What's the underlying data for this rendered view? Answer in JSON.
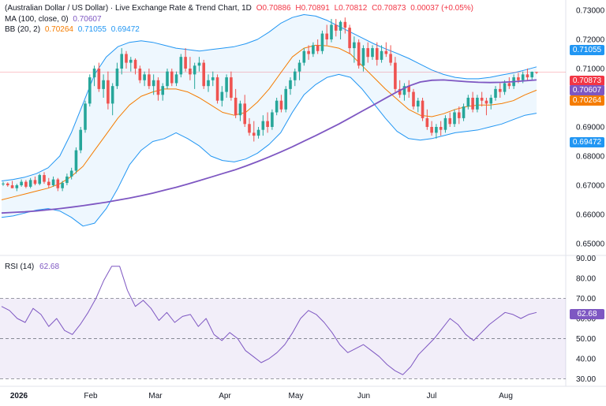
{
  "header": {
    "title": "(Australian Dollar / US Dollar) · Live Exchange Rate & Trend Chart, 1D",
    "ohlc": {
      "o": "O0.70886",
      "h": "H0.70891",
      "l": "L0.70812",
      "c": "C0.70873",
      "chg": "0.00037 (+0.05%)"
    },
    "ma": {
      "label": "MA (100, close, 0)",
      "value": "0.70607"
    },
    "bb": {
      "label": "BB (20, 2)",
      "mid": "0.70264",
      "upper": "0.71055",
      "lower": "0.69472"
    }
  },
  "rsi": {
    "label": "RSI (14)",
    "value": "62.68"
  },
  "colors": {
    "up": "#26a69a",
    "down": "#ef5350",
    "ma": "#7e57c2",
    "bb_mid": "#f57c00",
    "bb_band": "#2196f3",
    "rsi_line": "#7e57c2",
    "price_line": "#f23645"
  },
  "price_tags": [
    {
      "value": "0.71055",
      "color": "#2196f3"
    },
    {
      "value": "0.70873",
      "color": "#f23645"
    },
    {
      "value": "0.70607",
      "color": "#7e57c2"
    },
    {
      "value": "0.70264",
      "color": "#f57c00"
    },
    {
      "value": "0.69472",
      "color": "#2196f3"
    }
  ],
  "rsi_tag": {
    "value": "62.68",
    "color": "#7e57c2"
  },
  "chart_data": {
    "type": "line",
    "price_axis": {
      "ticks": [
        "0.73000",
        "0.72000",
        "0.71000",
        "0.70000",
        "0.69000",
        "0.68000",
        "0.67000",
        "0.66000",
        "0.65000"
      ],
      "ylim": [
        0.6465,
        0.7335
      ]
    },
    "rsi_axis": {
      "ticks": [
        "90.00",
        "80.00",
        "70.00",
        "60.00",
        "50.00",
        "40.00",
        "30.00"
      ],
      "ylim": [
        27,
        91
      ]
    },
    "x_ticks": [
      "2026",
      "Feb",
      "Mar",
      "Apr",
      "May",
      "Jun",
      "Jul",
      "Aug"
    ],
    "series": [
      {
        "name": "MA (100, close, 0)",
        "values": [
          0.6605,
          0.6607,
          0.6609,
          0.6612,
          0.6616,
          0.662,
          0.6625,
          0.663,
          0.6636,
          0.6642,
          0.6649,
          0.6656,
          0.6664,
          0.6673,
          0.6683,
          0.6693,
          0.6704,
          0.6716,
          0.6728,
          0.674,
          0.6752,
          0.6766,
          0.6781,
          0.6797,
          0.6814,
          0.6832,
          0.6851,
          0.687,
          0.689,
          0.691,
          0.6932,
          0.6954,
          0.6976,
          0.6998,
          0.702,
          0.704,
          0.7054,
          0.706,
          0.7061,
          0.7058,
          0.7055,
          0.7053,
          0.7052,
          0.7053,
          0.7055,
          0.7058,
          0.7061
        ]
      },
      {
        "name": "BB (20, 2) upper",
        "values": [
          0.6715,
          0.672,
          0.6728,
          0.674,
          0.676,
          0.68,
          0.688,
          0.698,
          0.708,
          0.714,
          0.7175,
          0.719,
          0.7195,
          0.719,
          0.718,
          0.717,
          0.7165,
          0.716,
          0.7165,
          0.717,
          0.7175,
          0.7185,
          0.72,
          0.7225,
          0.7255,
          0.7275,
          0.7285,
          0.728,
          0.7265,
          0.7245,
          0.7225,
          0.7205,
          0.7185,
          0.7168,
          0.7152,
          0.7135,
          0.7115,
          0.7095,
          0.708,
          0.707,
          0.7065,
          0.7065,
          0.707,
          0.7078,
          0.7085,
          0.7095,
          0.7106
        ]
      },
      {
        "name": "BB (20, 2) basis",
        "values": [
          0.665,
          0.666,
          0.667,
          0.668,
          0.669,
          0.6705,
          0.673,
          0.6765,
          0.682,
          0.6875,
          0.693,
          0.6975,
          0.7005,
          0.702,
          0.703,
          0.703,
          0.702,
          0.7,
          0.6975,
          0.695,
          0.694,
          0.695,
          0.6985,
          0.703,
          0.7085,
          0.714,
          0.717,
          0.718,
          0.7178,
          0.717,
          0.715,
          0.711,
          0.707,
          0.703,
          0.6995,
          0.696,
          0.694,
          0.6935,
          0.6945,
          0.696,
          0.697,
          0.6975,
          0.6975,
          0.698,
          0.699,
          0.701,
          0.7026
        ]
      },
      {
        "name": "BB (20, 2) lower",
        "values": [
          0.659,
          0.6595,
          0.6605,
          0.6615,
          0.662,
          0.6612,
          0.659,
          0.656,
          0.657,
          0.662,
          0.669,
          0.677,
          0.682,
          0.685,
          0.686,
          0.688,
          0.686,
          0.6835,
          0.68,
          0.6785,
          0.678,
          0.679,
          0.681,
          0.684,
          0.688,
          0.695,
          0.701,
          0.7045,
          0.707,
          0.708,
          0.707,
          0.703,
          0.698,
          0.693,
          0.6885,
          0.686,
          0.6855,
          0.686,
          0.687,
          0.688,
          0.6885,
          0.689,
          0.69,
          0.691,
          0.6925,
          0.694,
          0.6947
        ]
      },
      {
        "name": "RSI (14)",
        "values": [
          66,
          64,
          60,
          58,
          65,
          62,
          56,
          60,
          54,
          52,
          57,
          63,
          70,
          79,
          86,
          86,
          74,
          66,
          69,
          65,
          59,
          63,
          58,
          61,
          62,
          56,
          60,
          52,
          49,
          53,
          50,
          44,
          41,
          38,
          40,
          43,
          47,
          53,
          60,
          64,
          62,
          58,
          53,
          47,
          43,
          45,
          47,
          44,
          41,
          37,
          34,
          32,
          36,
          42,
          46,
          50,
          55,
          60,
          57,
          52,
          49,
          53,
          57,
          60,
          63,
          62,
          60,
          62,
          63
        ]
      }
    ],
    "candles": [
      [
        0.6705,
        0.6712,
        0.6698,
        0.6706
      ],
      [
        0.6706,
        0.671,
        0.6695,
        0.67
      ],
      [
        0.67,
        0.6715,
        0.669,
        0.669
      ],
      [
        0.669,
        0.6705,
        0.668,
        0.67
      ],
      [
        0.67,
        0.672,
        0.6695,
        0.6712
      ],
      [
        0.6712,
        0.6718,
        0.669,
        0.6695
      ],
      [
        0.6695,
        0.6725,
        0.669,
        0.6718
      ],
      [
        0.6718,
        0.673,
        0.67,
        0.6705
      ],
      [
        0.6705,
        0.674,
        0.67,
        0.6735
      ],
      [
        0.6735,
        0.6745,
        0.6705,
        0.6712
      ],
      [
        0.6712,
        0.6725,
        0.669,
        0.67
      ],
      [
        0.67,
        0.673,
        0.6695,
        0.672
      ],
      [
        0.672,
        0.6725,
        0.668,
        0.669
      ],
      [
        0.669,
        0.6715,
        0.668,
        0.6708
      ],
      [
        0.6708,
        0.674,
        0.67,
        0.673
      ],
      [
        0.673,
        0.676,
        0.672,
        0.675
      ],
      [
        0.675,
        0.683,
        0.674,
        0.682
      ],
      [
        0.682,
        0.69,
        0.681,
        0.689
      ],
      [
        0.689,
        0.699,
        0.688,
        0.698
      ],
      [
        0.698,
        0.708,
        0.697,
        0.707
      ],
      [
        0.707,
        0.711,
        0.704,
        0.71
      ],
      [
        0.71,
        0.712,
        0.702,
        0.703
      ],
      [
        0.703,
        0.708,
        0.7,
        0.706
      ],
      [
        0.706,
        0.709,
        0.696,
        0.698
      ],
      [
        0.698,
        0.705,
        0.694,
        0.704
      ],
      [
        0.704,
        0.712,
        0.703,
        0.71
      ],
      [
        0.71,
        0.717,
        0.708,
        0.715
      ],
      [
        0.715,
        0.716,
        0.71,
        0.712
      ],
      [
        0.712,
        0.714,
        0.709,
        0.713
      ],
      [
        0.713,
        0.7135,
        0.708,
        0.71
      ],
      [
        0.71,
        0.711,
        0.705,
        0.706
      ],
      [
        0.706,
        0.709,
        0.704,
        0.708
      ],
      [
        0.708,
        0.71,
        0.703,
        0.704
      ],
      [
        0.704,
        0.708,
        0.701,
        0.706
      ],
      [
        0.706,
        0.707,
        0.699,
        0.701
      ],
      [
        0.701,
        0.705,
        0.699,
        0.704
      ],
      [
        0.704,
        0.71,
        0.703,
        0.709
      ],
      [
        0.709,
        0.71,
        0.704,
        0.705
      ],
      [
        0.705,
        0.709,
        0.704,
        0.708
      ],
      [
        0.708,
        0.715,
        0.707,
        0.714
      ],
      [
        0.714,
        0.717,
        0.709,
        0.71
      ],
      [
        0.71,
        0.714,
        0.706,
        0.708
      ],
      [
        0.708,
        0.712,
        0.703,
        0.711
      ],
      [
        0.711,
        0.714,
        0.709,
        0.712
      ],
      [
        0.712,
        0.713,
        0.703,
        0.704
      ],
      [
        0.704,
        0.708,
        0.702,
        0.706
      ],
      [
        0.706,
        0.709,
        0.704,
        0.707
      ],
      [
        0.707,
        0.708,
        0.698,
        0.699
      ],
      [
        0.699,
        0.704,
        0.697,
        0.702
      ],
      [
        0.702,
        0.708,
        0.7,
        0.707
      ],
      [
        0.707,
        0.709,
        0.699,
        0.7
      ],
      [
        0.7,
        0.703,
        0.693,
        0.694
      ],
      [
        0.694,
        0.699,
        0.692,
        0.698
      ],
      [
        0.698,
        0.701,
        0.69,
        0.691
      ],
      [
        0.691,
        0.693,
        0.687,
        0.688
      ],
      [
        0.688,
        0.692,
        0.685,
        0.687
      ],
      [
        0.687,
        0.69,
        0.686,
        0.689
      ],
      [
        0.689,
        0.694,
        0.687,
        0.692
      ],
      [
        0.692,
        0.695,
        0.688,
        0.69
      ],
      [
        0.69,
        0.696,
        0.689,
        0.695
      ],
      [
        0.695,
        0.7,
        0.694,
        0.699
      ],
      [
        0.699,
        0.701,
        0.695,
        0.696
      ],
      [
        0.696,
        0.704,
        0.695,
        0.703
      ],
      [
        0.703,
        0.707,
        0.701,
        0.706
      ],
      [
        0.706,
        0.71,
        0.704,
        0.709
      ],
      [
        0.709,
        0.713,
        0.706,
        0.712
      ],
      [
        0.712,
        0.717,
        0.711,
        0.716
      ],
      [
        0.716,
        0.718,
        0.713,
        0.715
      ],
      [
        0.715,
        0.719,
        0.714,
        0.718
      ],
      [
        0.718,
        0.72,
        0.715,
        0.716
      ],
      [
        0.716,
        0.723,
        0.715,
        0.722
      ],
      [
        0.722,
        0.725,
        0.718,
        0.72
      ],
      [
        0.72,
        0.727,
        0.719,
        0.725
      ],
      [
        0.725,
        0.727,
        0.721,
        0.723
      ],
      [
        0.723,
        0.7265,
        0.72,
        0.726
      ],
      [
        0.726,
        0.7275,
        0.722,
        0.724
      ],
      [
        0.724,
        0.725,
        0.715,
        0.717
      ],
      [
        0.717,
        0.721,
        0.712,
        0.719
      ],
      [
        0.719,
        0.72,
        0.71,
        0.711
      ],
      [
        0.711,
        0.718,
        0.709,
        0.717
      ],
      [
        0.717,
        0.719,
        0.712,
        0.714
      ],
      [
        0.714,
        0.718,
        0.713,
        0.717
      ],
      [
        0.717,
        0.719,
        0.711,
        0.713
      ],
      [
        0.713,
        0.718,
        0.712,
        0.716
      ],
      [
        0.716,
        0.719,
        0.714,
        0.715
      ],
      [
        0.715,
        0.718,
        0.711,
        0.712
      ],
      [
        0.712,
        0.714,
        0.702,
        0.703
      ],
      [
        0.703,
        0.706,
        0.7,
        0.701
      ],
      [
        0.701,
        0.705,
        0.699,
        0.704
      ],
      [
        0.704,
        0.706,
        0.7,
        0.702
      ],
      [
        0.702,
        0.703,
        0.696,
        0.697
      ],
      [
        0.697,
        0.7,
        0.695,
        0.699
      ],
      [
        0.699,
        0.7,
        0.692,
        0.693
      ],
      [
        0.693,
        0.696,
        0.689,
        0.69
      ],
      [
        0.69,
        0.692,
        0.687,
        0.688
      ],
      [
        0.688,
        0.691,
        0.686,
        0.69
      ],
      [
        0.69,
        0.692,
        0.687,
        0.689
      ],
      [
        0.689,
        0.694,
        0.688,
        0.693
      ],
      [
        0.693,
        0.695,
        0.69,
        0.691
      ],
      [
        0.691,
        0.696,
        0.69,
        0.695
      ],
      [
        0.695,
        0.697,
        0.691,
        0.693
      ],
      [
        0.693,
        0.698,
        0.692,
        0.697
      ],
      [
        0.697,
        0.701,
        0.696,
        0.7
      ],
      [
        0.7,
        0.702,
        0.695,
        0.696
      ],
      [
        0.696,
        0.701,
        0.695,
        0.7
      ],
      [
        0.7,
        0.702,
        0.697,
        0.699
      ],
      [
        0.699,
        0.7,
        0.694,
        0.698
      ],
      [
        0.698,
        0.701,
        0.696,
        0.7
      ],
      [
        0.7,
        0.704,
        0.699,
        0.703
      ],
      [
        0.703,
        0.705,
        0.7,
        0.702
      ],
      [
        0.702,
        0.706,
        0.701,
        0.705
      ],
      [
        0.705,
        0.707,
        0.703,
        0.704
      ],
      [
        0.704,
        0.708,
        0.703,
        0.707
      ],
      [
        0.707,
        0.7085,
        0.705,
        0.706
      ],
      [
        0.706,
        0.709,
        0.705,
        0.708
      ],
      [
        0.708,
        0.71,
        0.706,
        0.707
      ],
      [
        0.707,
        0.709,
        0.706,
        0.7089
      ],
      [
        0.70886,
        0.70891,
        0.70812,
        0.70873
      ]
    ]
  }
}
